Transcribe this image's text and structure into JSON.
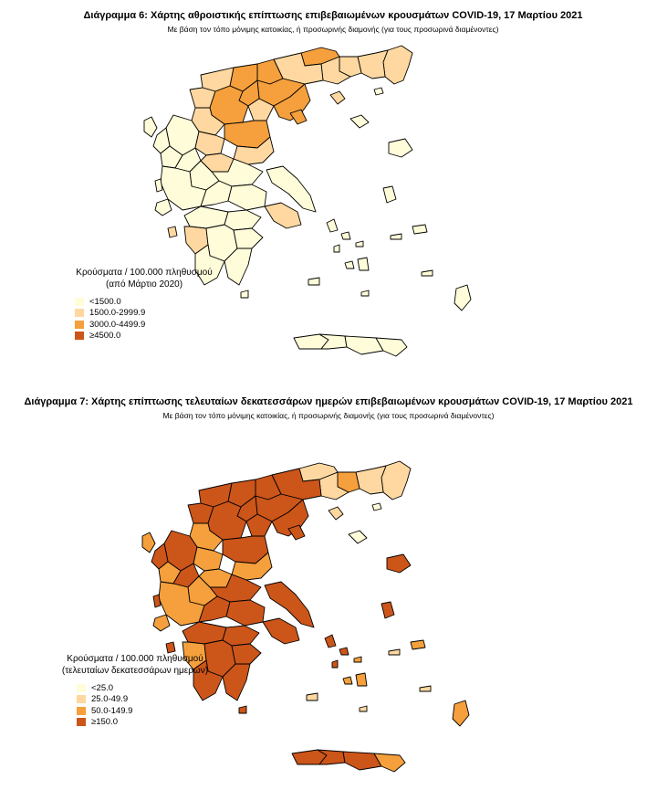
{
  "map1": {
    "title": "Διάγραμμα 6: Χάρτης αθροιστικής επίπτωσης επιβεβαιωμένων κρουσμάτων COVID-19, 17 Μαρτίου 2021",
    "subtitle": "Με βάση τον τόπο μόνιμης κατοικίας, ή προσωρινής διαμονής (για τους προσωρινά διαμένοντες)",
    "legend_title_line1": "Κρούσματα / 100.000 πληθυσμού",
    "legend_title_line2": "(από Μάρτιο 2020)",
    "legend": [
      {
        "label": "<1500.0",
        "color": "#fffdd9"
      },
      {
        "label": "1500.0-2999.9",
        "color": "#fed8a0"
      },
      {
        "label": "3000.0-4499.9",
        "color": "#f5a03c"
      },
      {
        "label": "≥4500.0",
        "color": "#cc5519"
      }
    ]
  },
  "map2": {
    "title": "Διάγραμμα 7: Χάρτης επίπτωσης τελευταίων δεκατεσσάρων ημερών επιβεβαιωμένων κρουσμάτων COVID-19, 17 Μαρτίου 2021",
    "subtitle": "Με βάση τον τόπο μόνιμης κατοικίας, ή προσωρινής διαμονής (για τους προσωρινά διαμένοντες)",
    "legend_title_line1": "Κρούσματα / 100.000 πληθυσμού",
    "legend_title_line2": "(τελευταίων δεκατεσσάρων ημερών)",
    "legend": [
      {
        "label": "<25.0",
        "color": "#fffdd9"
      },
      {
        "label": "25.0-49.9",
        "color": "#fed8a0"
      },
      {
        "label": "50.0-149.9",
        "color": "#f5a03c"
      },
      {
        "label": "≥150.0",
        "color": "#cc5519"
      }
    ]
  }
}
